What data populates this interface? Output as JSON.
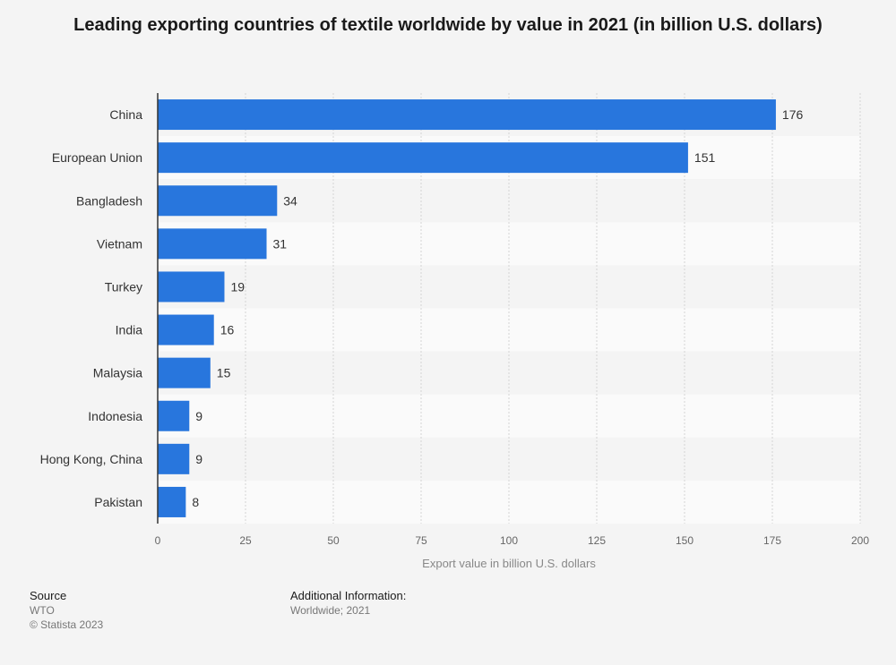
{
  "chart_data": {
    "type": "bar",
    "orientation": "horizontal",
    "title": "Leading exporting countries of textile worldwide by value in 2021 (in billion U.S. dollars)",
    "xlabel": "Export value in billion U.S. dollars",
    "ylabel": "",
    "categories": [
      "China",
      "European Union",
      "Bangladesh",
      "Vietnam",
      "Turkey",
      "India",
      "Malaysia",
      "Indonesia",
      "Hong Kong, China",
      "Pakistan"
    ],
    "values": [
      176,
      151,
      34,
      31,
      19,
      16,
      15,
      9,
      9,
      8
    ],
    "xlim": [
      0,
      200
    ],
    "xticks": [
      0,
      25,
      50,
      75,
      100,
      125,
      150,
      175,
      200
    ],
    "grid": true,
    "bar_color": "#2876dd"
  },
  "footer": {
    "source_heading": "Source",
    "source_name": "WTO",
    "copyright": "© Statista 2023",
    "info_heading": "Additional Information:",
    "info_text": "Worldwide; 2021"
  }
}
